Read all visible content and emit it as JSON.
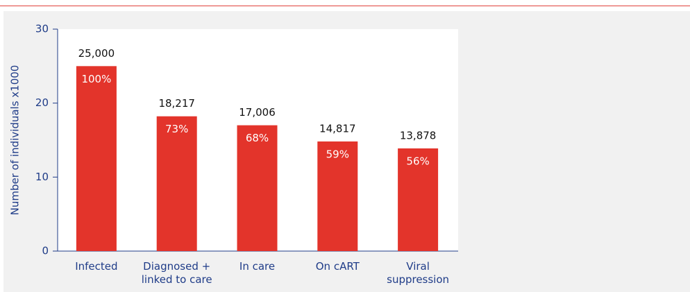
{
  "chart_data": {
    "type": "bar",
    "y_label": "Number of individuals x1000",
    "categories": [
      "Infected",
      "Diagnosed + linked to care",
      "In care",
      "On cART",
      "Viral suppression"
    ],
    "values": [
      25,
      18.217,
      17.006,
      14.817,
      13.878
    ],
    "value_labels": [
      "25,000",
      "18,217",
      "17,006",
      "14,817",
      "13,878"
    ],
    "percentage_labels": [
      "100%",
      "73%",
      "68%",
      "59%",
      "56%"
    ],
    "color": "#e3342b",
    "ylim": [
      0,
      30
    ],
    "yticks": [
      0,
      10,
      20,
      30
    ]
  }
}
